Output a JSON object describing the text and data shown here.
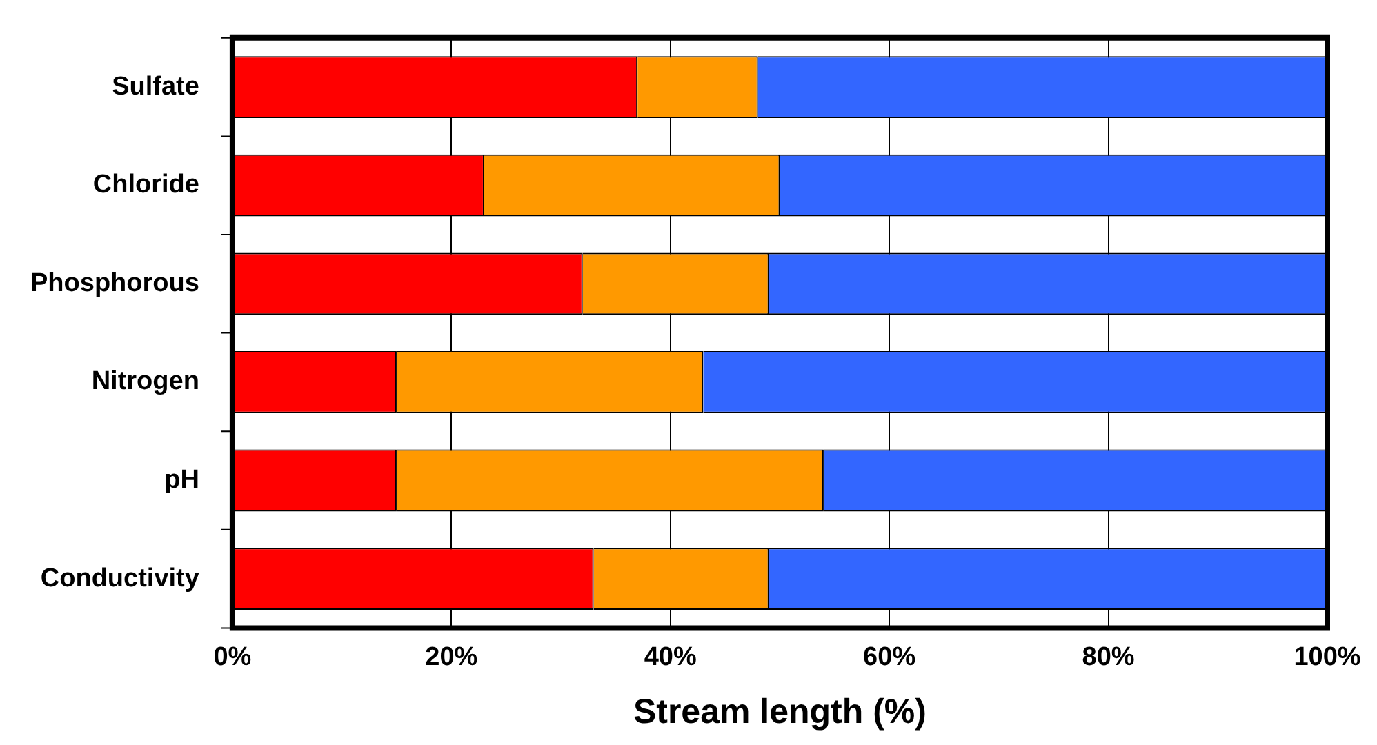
{
  "chart_data": {
    "type": "bar",
    "orientation": "horizontal",
    "stacked": true,
    "xlabel": "Stream length (%)",
    "categories": [
      "Sulfate",
      "Chloride",
      "Phosphorous",
      "Nitrogen",
      "pH",
      "Conductivity"
    ],
    "series": [
      {
        "color": "#ff0000",
        "values": [
          37,
          23,
          32,
          15,
          15,
          33
        ]
      },
      {
        "color": "#ff9900",
        "values": [
          11,
          27,
          17,
          28,
          39,
          16
        ]
      },
      {
        "color": "#3366ff",
        "values": [
          52,
          50,
          51,
          57,
          46,
          51
        ]
      }
    ],
    "xlim": [
      0,
      100
    ],
    "xticks": [
      {
        "value": 0,
        "label": "0%"
      },
      {
        "value": 20,
        "label": "20%"
      },
      {
        "value": 40,
        "label": "40%"
      },
      {
        "value": 60,
        "label": "60%"
      },
      {
        "value": 80,
        "label": "80%"
      },
      {
        "value": 100,
        "label": "100%"
      }
    ],
    "grid": "x",
    "legend": false
  }
}
